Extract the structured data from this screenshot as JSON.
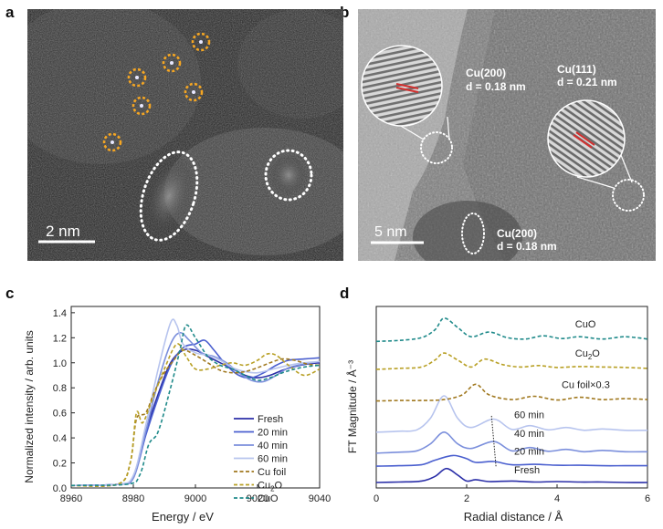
{
  "figure": {
    "panel_labels": [
      "a",
      "b",
      "c",
      "d"
    ],
    "colors": {
      "fresh": "#2b2fa8",
      "min20": "#4a5fcf",
      "min40": "#7b8fdc",
      "min60": "#b7c4ee",
      "cu_foil": "#a0781e",
      "cu2o": "#b8a025",
      "cuo": "#1f8a8a",
      "circle_orange": "#f5a623"
    }
  },
  "panel_a": {
    "scale_bar": "2 nm"
  },
  "panel_b": {
    "scale_bar": "5 nm",
    "annotations": [
      {
        "plane": "Cu(200)",
        "spacing": "d = 0.18 nm"
      },
      {
        "plane": "Cu(111)",
        "spacing": "d = 0.21 nm"
      },
      {
        "plane": "Cu(200)",
        "spacing": "d = 0.18 nm"
      }
    ]
  },
  "chart_data": [
    {
      "type": "line",
      "panel": "c",
      "xlabel": "Energy / eV",
      "ylabel": "Normalized intensity / arb. units",
      "xlim": [
        8960,
        9040
      ],
      "ylim": [
        0.0,
        1.45
      ],
      "xticks": [
        8960,
        8980,
        9000,
        9020,
        9040
      ],
      "yticks": [
        "0.0",
        "0.2",
        "0.4",
        "0.6",
        "0.8",
        "1.0",
        "1.2",
        "1.4"
      ],
      "legend": [
        "Fresh",
        "20 min",
        "40 min",
        "60 min",
        "Cu  foil",
        "Cu2O",
        "CuO"
      ],
      "series": [
        {
          "name": "Fresh",
          "style": "solid",
          "x": [
            8960,
            8975,
            8980,
            8984,
            8988,
            8992,
            8996,
            9000,
            9004,
            9008,
            9012,
            9016,
            9020,
            9024,
            9028,
            9032,
            9036,
            9040
          ],
          "y": [
            0.02,
            0.03,
            0.08,
            0.45,
            0.75,
            1.0,
            1.1,
            1.1,
            1.05,
            1.0,
            0.95,
            0.9,
            0.88,
            0.9,
            0.94,
            0.97,
            0.99,
            1.0
          ]
        },
        {
          "name": "20 min",
          "style": "solid",
          "x": [
            8960,
            8975,
            8980,
            8984,
            8988,
            8992,
            8996,
            9000,
            9003,
            9006,
            9010,
            9014,
            9018,
            9022,
            9026,
            9030,
            9035,
            9040
          ],
          "y": [
            0.02,
            0.03,
            0.08,
            0.42,
            0.72,
            0.98,
            1.12,
            1.15,
            1.18,
            1.1,
            0.98,
            0.9,
            0.88,
            0.92,
            0.98,
            1.02,
            1.03,
            1.04
          ]
        },
        {
          "name": "40 min",
          "style": "solid",
          "x": [
            8960,
            8975,
            8980,
            8984,
            8988,
            8992,
            8995,
            8998,
            9002,
            9006,
            9010,
            9014,
            9018,
            9022,
            9026,
            9030,
            9035,
            9040
          ],
          "y": [
            0.02,
            0.03,
            0.08,
            0.45,
            0.85,
            1.15,
            1.24,
            1.18,
            1.08,
            1.05,
            1.0,
            0.92,
            0.86,
            0.85,
            0.9,
            0.96,
            0.99,
            1.01
          ]
        },
        {
          "name": "60 min",
          "style": "solid",
          "x": [
            8960,
            8975,
            8980,
            8984,
            8988,
            8992,
            8994,
            8996,
            9000,
            9004,
            9008,
            9012,
            9016,
            9020,
            9025,
            9030,
            9035,
            9040
          ],
          "y": [
            0.02,
            0.03,
            0.1,
            0.5,
            0.95,
            1.32,
            1.3,
            1.15,
            1.08,
            1.06,
            1.02,
            0.96,
            0.93,
            0.92,
            0.95,
            0.98,
            1.0,
            1.01
          ]
        },
        {
          "name": "Cu  foil",
          "style": "dashed",
          "x": [
            8960,
            8975,
            8979,
            8981,
            8984,
            8987,
            8990,
            8993,
            8996,
            9000,
            9004,
            9008,
            9012,
            9016,
            9020,
            9024,
            9028,
            9032,
            9036,
            9040
          ],
          "y": [
            0.02,
            0.03,
            0.2,
            0.55,
            0.6,
            0.78,
            0.92,
            1.02,
            1.1,
            1.06,
            1.0,
            0.94,
            0.92,
            0.93,
            0.96,
            1.0,
            1.03,
            1.02,
            0.99,
            0.98
          ]
        },
        {
          "name": "Cu2O",
          "style": "dashed",
          "x": [
            8960,
            8975,
            8979,
            8981,
            8983,
            8986,
            8990,
            8994,
            8997,
            9000,
            9004,
            9008,
            9012,
            9016,
            9020,
            9023,
            9026,
            9030,
            9035,
            9040
          ],
          "y": [
            0.02,
            0.03,
            0.2,
            0.6,
            0.52,
            0.7,
            0.95,
            1.15,
            1.05,
            0.95,
            0.95,
            0.98,
            1.0,
            0.98,
            1.02,
            1.07,
            1.06,
            0.98,
            0.9,
            0.95
          ]
        },
        {
          "name": "CuO",
          "style": "dashed",
          "x": [
            8960,
            8978,
            8982,
            8985,
            8988,
            8992,
            8995,
            8997,
            9000,
            9004,
            9008,
            9012,
            9016,
            9020,
            9024,
            9028,
            9032,
            9036,
            9040
          ],
          "y": [
            0.02,
            0.03,
            0.1,
            0.35,
            0.45,
            0.8,
            1.1,
            1.3,
            1.2,
            1.05,
            0.98,
            0.95,
            0.9,
            0.86,
            0.88,
            0.92,
            0.95,
            0.97,
            0.98
          ]
        }
      ]
    },
    {
      "type": "line",
      "panel": "d",
      "xlabel": "Radial distance / Å",
      "ylabel": "FT Magnitude / Å⁻³",
      "xlim": [
        0,
        6
      ],
      "xticks": [
        "0",
        "2",
        "4",
        "6"
      ],
      "labels": [
        "CuO",
        "Cu2O",
        "Cu foil×0.3",
        "60 min",
        "40 min",
        "20 min",
        "Fresh"
      ],
      "series": [
        {
          "name": "Fresh",
          "style": "solid",
          "offset": 0.0,
          "x": [
            0,
            0.5,
            1.0,
            1.3,
            1.55,
            1.8,
            2.0,
            2.2,
            2.5,
            3.0,
            3.5,
            4.0,
            4.5,
            5.0,
            5.5,
            6.0
          ],
          "y": [
            0.02,
            0.03,
            0.05,
            0.15,
            0.32,
            0.18,
            0.05,
            0.08,
            0.04,
            0.05,
            0.03,
            0.04,
            0.03,
            0.03,
            0.02,
            0.02
          ]
        },
        {
          "name": "20 min",
          "style": "solid",
          "offset": 0.35,
          "x": [
            0,
            0.5,
            1.0,
            1.3,
            1.7,
            2.0,
            2.2,
            2.6,
            3.0,
            3.5,
            4.0,
            4.5,
            5.0,
            5.5,
            6.0
          ],
          "y": [
            0.02,
            0.03,
            0.05,
            0.15,
            0.25,
            0.18,
            0.1,
            0.12,
            0.05,
            0.06,
            0.04,
            0.04,
            0.03,
            0.03,
            0.03
          ]
        },
        {
          "name": "40 min",
          "style": "solid",
          "offset": 0.65,
          "x": [
            0,
            0.5,
            0.9,
            1.2,
            1.5,
            1.8,
            2.1,
            2.6,
            3.0,
            3.4,
            3.8,
            4.2,
            4.6,
            5.0,
            5.5,
            6.0
          ],
          "y": [
            0.0,
            0.02,
            0.05,
            0.2,
            0.45,
            0.2,
            0.1,
            0.25,
            0.05,
            0.12,
            0.04,
            0.08,
            0.03,
            0.06,
            0.03,
            0.03
          ]
        },
        {
          "name": "60 min",
          "style": "solid",
          "offset": 1.1,
          "x": [
            0,
            0.5,
            0.9,
            1.2,
            1.5,
            1.8,
            2.1,
            2.6,
            3.0,
            3.4,
            3.8,
            4.2,
            4.6,
            5.0,
            5.5,
            6.0
          ],
          "y": [
            0.0,
            0.02,
            0.05,
            0.3,
            0.78,
            0.3,
            0.1,
            0.28,
            0.06,
            0.14,
            0.05,
            0.1,
            0.04,
            0.07,
            0.04,
            0.04
          ]
        },
        {
          "name": "Cu foil×0.3",
          "style": "dashed",
          "offset": 1.75,
          "x": [
            0,
            0.5,
            1.0,
            1.5,
            1.9,
            2.2,
            2.5,
            3.0,
            3.5,
            4.0,
            4.5,
            5.0,
            5.5,
            6.0
          ],
          "y": [
            0.02,
            0.03,
            0.03,
            0.05,
            0.15,
            0.38,
            0.15,
            0.05,
            0.12,
            0.04,
            0.1,
            0.05,
            0.07,
            0.05
          ]
        },
        {
          "name": "Cu2O",
          "style": "dashed",
          "offset": 2.45,
          "x": [
            0,
            0.5,
            1.0,
            1.3,
            1.5,
            1.8,
            2.1,
            2.4,
            2.8,
            3.2,
            3.6,
            4.0,
            4.5,
            5.0,
            5.5,
            6.0
          ],
          "y": [
            0.0,
            0.02,
            0.05,
            0.2,
            0.35,
            0.2,
            0.05,
            0.22,
            0.1,
            0.05,
            0.08,
            0.04,
            0.06,
            0.05,
            0.04,
            0.02
          ]
        },
        {
          "name": "CuO",
          "style": "dashed",
          "offset": 3.05,
          "x": [
            0,
            0.5,
            1.0,
            1.3,
            1.5,
            1.8,
            2.1,
            2.5,
            2.9,
            3.3,
            3.7,
            4.1,
            4.5,
            5.0,
            5.5,
            6.0
          ],
          "y": [
            0.0,
            0.02,
            0.08,
            0.25,
            0.5,
            0.3,
            0.1,
            0.2,
            0.08,
            0.05,
            0.12,
            0.06,
            0.1,
            0.05,
            0.1,
            0.05
          ]
        }
      ]
    }
  ]
}
